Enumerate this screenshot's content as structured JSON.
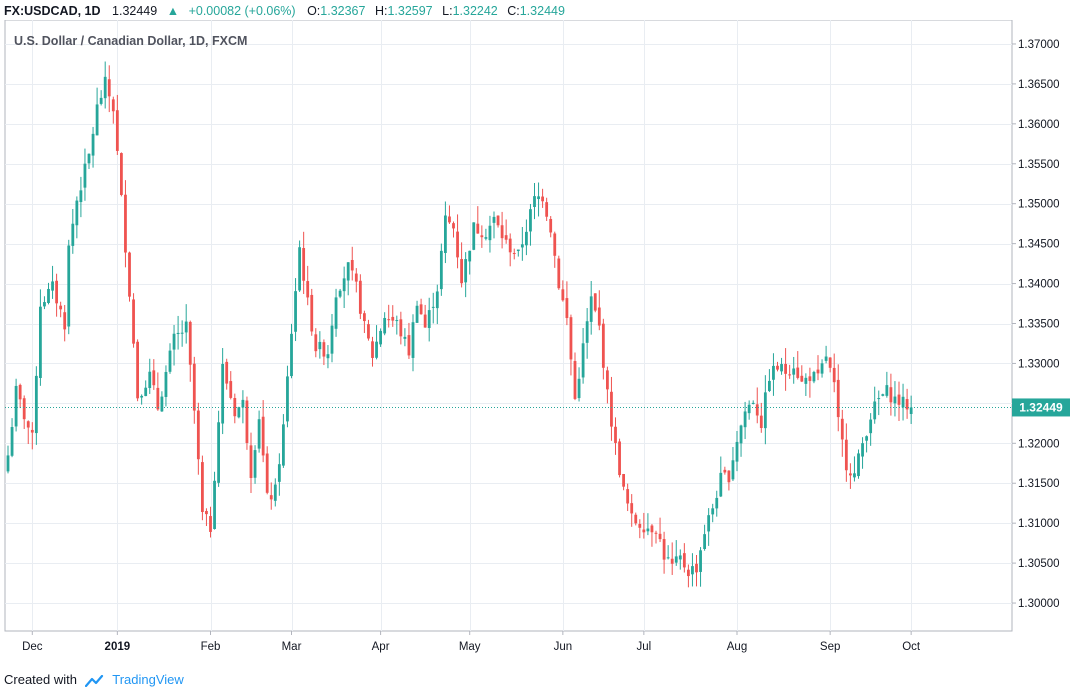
{
  "header": {
    "symbol": "FX:USDCAD, 1D",
    "last": "1.32449",
    "change": "+0.00082 (+0.06%)",
    "open_label": "O:",
    "open": "1.32367",
    "high_label": "H:",
    "high": "1.32597",
    "low_label": "L:",
    "low": "1.32242",
    "close_label": "C:",
    "close": "1.32449"
  },
  "footer": {
    "created_with": "Created with",
    "brand": "TradingView"
  },
  "colors": {
    "up": "#26a69a",
    "down": "#ef5350",
    "grid": "#e9edf2",
    "axis": "#b2b5be"
  },
  "chart_data": {
    "type": "candlestick",
    "title": "U.S. Dollar / Canadian Dollar, 1D, FXCM",
    "ylim": [
      1.2965,
      1.3725
    ],
    "y_ticks": [
      "1.37000",
      "1.36500",
      "1.36000",
      "1.35500",
      "1.35000",
      "1.34500",
      "1.34000",
      "1.33500",
      "1.33000",
      "1.32500",
      "1.32000",
      "1.31500",
      "1.31000",
      "1.30500",
      "1.30000"
    ],
    "x_ticks": [
      {
        "label": "Dec",
        "bar": 6
      },
      {
        "label": "2019",
        "bar": 27
      },
      {
        "label": "Feb",
        "bar": 50
      },
      {
        "label": "Mar",
        "bar": 70
      },
      {
        "label": "Apr",
        "bar": 92
      },
      {
        "label": "May",
        "bar": 114
      },
      {
        "label": "Jun",
        "bar": 137
      },
      {
        "label": "Jul",
        "bar": 157
      },
      {
        "label": "Aug",
        "bar": 180
      },
      {
        "label": "Sep",
        "bar": 203
      },
      {
        "label": "Oct",
        "bar": 223
      }
    ],
    "last_price": 1.32449,
    "last_price_label": "1.32449",
    "approximate": true,
    "close_path": [
      [
        0,
        1.3185
      ],
      [
        2,
        1.3265
      ],
      [
        6,
        1.3205
      ],
      [
        8,
        1.3375
      ],
      [
        11,
        1.3395
      ],
      [
        14,
        1.335
      ],
      [
        15,
        1.3445
      ],
      [
        17,
        1.3505
      ],
      [
        20,
        1.356
      ],
      [
        22,
        1.362
      ],
      [
        24,
        1.365
      ],
      [
        26,
        1.362
      ],
      [
        28,
        1.3505
      ],
      [
        30,
        1.339
      ],
      [
        32,
        1.326
      ],
      [
        35,
        1.3285
      ],
      [
        37,
        1.3245
      ],
      [
        41,
        1.333
      ],
      [
        44,
        1.3345
      ],
      [
        46,
        1.324
      ],
      [
        48,
        1.311
      ],
      [
        50,
        1.3095
      ],
      [
        53,
        1.3295
      ],
      [
        56,
        1.324
      ],
      [
        58,
        1.325
      ],
      [
        60,
        1.3165
      ],
      [
        62,
        1.3235
      ],
      [
        64,
        1.313
      ],
      [
        66,
        1.314
      ],
      [
        68,
        1.322
      ],
      [
        70,
        1.334
      ],
      [
        72,
        1.3445
      ],
      [
        74,
        1.3375
      ],
      [
        76,
        1.332
      ],
      [
        79,
        1.3315
      ],
      [
        81,
        1.339
      ],
      [
        84,
        1.342
      ],
      [
        86,
        1.3395
      ],
      [
        88,
        1.3345
      ],
      [
        90,
        1.331
      ],
      [
        93,
        1.336
      ],
      [
        96,
        1.335
      ],
      [
        99,
        1.3315
      ],
      [
        101,
        1.338
      ],
      [
        103,
        1.3345
      ],
      [
        106,
        1.3395
      ],
      [
        108,
        1.348
      ],
      [
        110,
        1.347
      ],
      [
        112,
        1.3405
      ],
      [
        115,
        1.347
      ],
      [
        118,
        1.3465
      ],
      [
        120,
        1.348
      ],
      [
        123,
        1.345
      ],
      [
        126,
        1.3435
      ],
      [
        128,
        1.347
      ],
      [
        130,
        1.3505
      ],
      [
        132,
        1.351
      ],
      [
        134,
        1.347
      ],
      [
        136,
        1.34
      ],
      [
        138,
        1.3355
      ],
      [
        140,
        1.3255
      ],
      [
        142,
        1.332
      ],
      [
        144,
        1.338
      ],
      [
        146,
        1.3345
      ],
      [
        148,
        1.326
      ],
      [
        150,
        1.3195
      ],
      [
        152,
        1.314
      ],
      [
        154,
        1.3105
      ],
      [
        156,
        1.31
      ],
      [
        158,
        1.3095
      ],
      [
        160,
        1.3095
      ],
      [
        162,
        1.306
      ],
      [
        164,
        1.3045
      ],
      [
        166,
        1.3055
      ],
      [
        168,
        1.304
      ],
      [
        170,
        1.3045
      ],
      [
        172,
        1.309
      ],
      [
        174,
        1.312
      ],
      [
        176,
        1.3155
      ],
      [
        178,
        1.316
      ],
      [
        180,
        1.3205
      ],
      [
        182,
        1.324
      ],
      [
        184,
        1.3255
      ],
      [
        186,
        1.3225
      ],
      [
        188,
        1.3285
      ],
      [
        190,
        1.3295
      ],
      [
        192,
        1.329
      ],
      [
        194,
        1.33
      ],
      [
        196,
        1.3275
      ],
      [
        198,
        1.3285
      ],
      [
        200,
        1.328
      ],
      [
        202,
        1.331
      ],
      [
        204,
        1.327
      ],
      [
        205,
        1.3225
      ],
      [
        207,
        1.3175
      ],
      [
        209,
        1.316
      ],
      [
        211,
        1.32
      ],
      [
        213,
        1.3235
      ],
      [
        215,
        1.3255
      ],
      [
        217,
        1.3265
      ],
      [
        219,
        1.3255
      ],
      [
        221,
        1.325
      ],
      [
        223,
        1.3245
      ]
    ]
  }
}
